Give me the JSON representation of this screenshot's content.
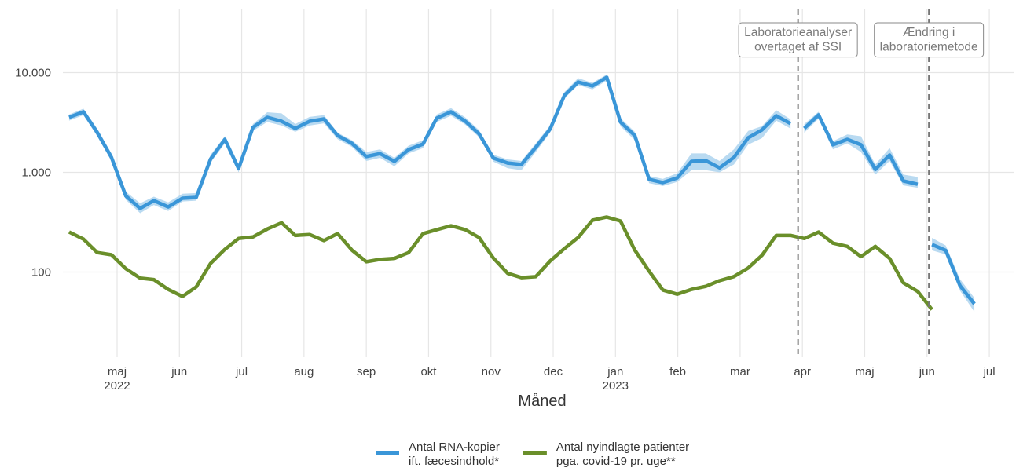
{
  "chart_data": {
    "type": "line",
    "x_title": "Måned",
    "log_y": true,
    "grid": true,
    "legend": "bottom",
    "xlim": [
      0.13,
      15.39
    ],
    "ylim": [
      14,
      43000
    ],
    "yticks": [
      100,
      {
        "value": 1000,
        "label": "1.000"
      },
      {
        "value": 10000,
        "label": "10.000"
      }
    ],
    "xticks": [
      {
        "value": 1,
        "label": "maj\n2022"
      },
      {
        "value": 2,
        "label": "jun"
      },
      {
        "value": 3,
        "label": "jul"
      },
      {
        "value": 4,
        "label": "aug"
      },
      {
        "value": 5,
        "label": "sep"
      },
      {
        "value": 6,
        "label": "okt"
      },
      {
        "value": 7,
        "label": "nov"
      },
      {
        "value": 8,
        "label": "dec"
      },
      {
        "value": 9,
        "label": "jan\n2023"
      },
      {
        "value": 10,
        "label": "feb"
      },
      {
        "value": 11,
        "label": "mar"
      },
      {
        "value": 12,
        "label": "apr"
      },
      {
        "value": 13,
        "label": "maj"
      },
      {
        "value": 14,
        "label": "jun"
      },
      {
        "value": 15,
        "label": "jul"
      }
    ],
    "events": [
      {
        "x": 11.93,
        "label": "Laboratorieanalyser\novertaget af SSI"
      },
      {
        "x": 14.03,
        "label": "Ændring i\nlaboratoriemetode"
      }
    ],
    "x": [
      0.23,
      0.46,
      0.68,
      0.91,
      1.14,
      1.37,
      1.59,
      1.82,
      2.05,
      2.27,
      2.5,
      2.73,
      2.95,
      3.18,
      3.41,
      3.64,
      3.86,
      4.09,
      4.32,
      4.54,
      4.77,
      5.0,
      5.22,
      5.45,
      5.68,
      5.91,
      6.13,
      6.36,
      6.59,
      6.81,
      7.04,
      7.27,
      7.49,
      7.72,
      7.95,
      8.18,
      8.4,
      8.63,
      8.86,
      9.08,
      9.31,
      9.54,
      9.76,
      9.99,
      10.22,
      10.45,
      10.67,
      10.9,
      11.13,
      11.35,
      11.58,
      11.81,
      12.03,
      12.26,
      12.49,
      12.72,
      12.94,
      13.17,
      13.4,
      13.62,
      13.85,
      14.08,
      14.3,
      14.53,
      14.76
    ],
    "series": [
      {
        "name": "Antal RNA-kopier\nift. fæcesindhold*",
        "color": "#3a96d8",
        "band_color": "#b9daf1",
        "break_at_events": true,
        "values": [
          3560,
          4040,
          2520,
          1410,
          580,
          435,
          520,
          450,
          550,
          560,
          1360,
          2140,
          1090,
          2820,
          3560,
          3250,
          2760,
          3250,
          3430,
          2340,
          1950,
          1440,
          1540,
          1290,
          1690,
          1920,
          3490,
          4040,
          3250,
          2430,
          1390,
          1240,
          1200,
          1780,
          2710,
          5910,
          8040,
          7350,
          8970,
          3190,
          2340,
          850,
          790,
          880,
          1290,
          1310,
          1110,
          1410,
          2220,
          2660,
          3690,
          3080,
          2760,
          3760,
          1890,
          2140,
          1890,
          1070,
          1490,
          820,
          760,
          189,
          165,
          73,
          48
        ],
        "lower": [
          3300,
          3750,
          2300,
          1300,
          530,
          390,
          470,
          410,
          510,
          520,
          1250,
          1950,
          1000,
          2600,
          3200,
          2950,
          2550,
          2950,
          3100,
          2150,
          1800,
          1300,
          1400,
          1150,
          1550,
          1750,
          3200,
          3700,
          3000,
          2250,
          1280,
          1100,
          1050,
          1600,
          2500,
          5500,
          7500,
          6800,
          8300,
          2900,
          2100,
          780,
          730,
          800,
          1050,
          1050,
          1000,
          1200,
          1900,
          2200,
          3300,
          2750,
          2500,
          3450,
          1700,
          1950,
          1600,
          950,
          1300,
          740,
          700,
          165,
          150,
          65,
          40
        ],
        "upper": [
          3800,
          4350,
          2750,
          1550,
          640,
          490,
          570,
          500,
          610,
          620,
          1500,
          2300,
          1200,
          3050,
          4000,
          3900,
          3050,
          3600,
          3750,
          2500,
          2100,
          1600,
          1700,
          1400,
          1850,
          2100,
          3800,
          4400,
          3550,
          2650,
          1500,
          1350,
          1300,
          1950,
          2950,
          6400,
          8800,
          7900,
          9600,
          3500,
          2550,
          920,
          860,
          980,
          1550,
          1550,
          1300,
          1700,
          2600,
          2900,
          4200,
          3400,
          3050,
          4050,
          2050,
          2400,
          2300,
          1200,
          1750,
          950,
          900,
          220,
          185,
          85,
          55
        ]
      },
      {
        "name": "Antal nyindlagte patienter\npga. covid-19 pr. uge**",
        "color": "#6a8f2a",
        "values": [
          252,
          214,
          157,
          149,
          108,
          87,
          84,
          67,
          57,
          71,
          122,
          169,
          217,
          225,
          270,
          312,
          233,
          238,
          207,
          243,
          166,
          127,
          134,
          137,
          157,
          243,
          266,
          291,
          266,
          222,
          138,
          97,
          88,
          90,
          129,
          172,
          222,
          331,
          356,
          325,
          166,
          102,
          66,
          60,
          67,
          72,
          82,
          90,
          110,
          147,
          233,
          233,
          217,
          252,
          195,
          181,
          143,
          181,
          137,
          78,
          64,
          42,
          null,
          null,
          null
        ]
      }
    ]
  }
}
